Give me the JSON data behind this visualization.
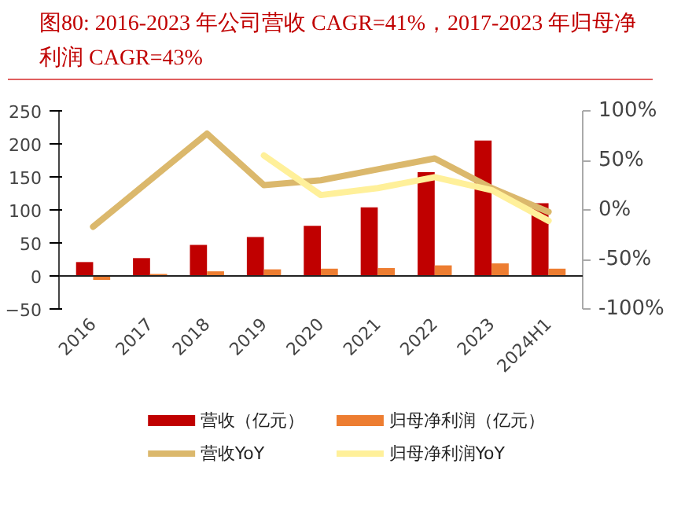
{
  "chart_data": {
    "type": "bar",
    "title": "图80:   2016-2023 年公司营收 CAGR=41%，2017-2023 年归母净利润 CAGR=43%",
    "categories": [
      "2016",
      "2017",
      "2018",
      "2019",
      "2020",
      "2021",
      "2022",
      "2023",
      "2024H1"
    ],
    "series": [
      {
        "name": "营收（亿元）",
        "color": "#c00000",
        "values": [
          21,
          27,
          47,
          59,
          76,
          104,
          157,
          205,
          110
        ]
      },
      {
        "name": "归母净利润（亿元）",
        "color": "#ed7d31",
        "values": [
          -6,
          3,
          7,
          10,
          11,
          12,
          16,
          19,
          11
        ]
      },
      {
        "name": "营收YoY",
        "type": "line",
        "axis": "y2",
        "color": "#dbb86c",
        "values": [
          -17,
          30,
          77,
          25,
          30,
          41,
          52,
          22,
          -2
        ]
      },
      {
        "name": "归母净利润YoY",
        "type": "line",
        "axis": "y2",
        "color": "#fff09a",
        "values": [
          null,
          null,
          null,
          55,
          15,
          22,
          33,
          20,
          -11
        ]
      }
    ],
    "ylim": [
      -50,
      250
    ],
    "yticks": [
      -50,
      0,
      50,
      100,
      150,
      200,
      250
    ],
    "y2lim": [
      -100,
      100
    ],
    "y2ticks": [
      {
        "value": -100,
        "label": "-100%"
      },
      {
        "value": -50,
        "label": "-50%"
      },
      {
        "value": 0,
        "label": "0%"
      },
      {
        "value": 50,
        "label": "50%"
      },
      {
        "value": 100,
        "label": "100%"
      }
    ],
    "grid": false,
    "legend": "bottom",
    "line_style": "solid",
    "marker": "none"
  }
}
